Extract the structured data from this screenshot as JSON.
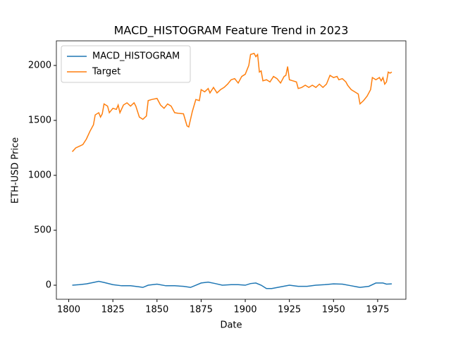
{
  "chart_data": {
    "type": "line",
    "title": "MACD_HISTOGRAM Feature Trend in 2023",
    "xlabel": "Date",
    "ylabel": "ETH-USD Price",
    "xlim": [
      1793,
      1991
    ],
    "ylim": [
      -128,
      2224
    ],
    "xticks": [
      1800,
      1825,
      1850,
      1875,
      1900,
      1925,
      1950,
      1975
    ],
    "yticks": [
      0,
      500,
      1000,
      1500,
      2000
    ],
    "grid": false,
    "legend": "upper-left",
    "series": [
      {
        "name": "MACD_HISTOGRAM",
        "color": "#1f77b4",
        "x": [
          1802,
          1806,
          1810,
          1814,
          1817,
          1820,
          1825,
          1830,
          1835,
          1840,
          1842,
          1845,
          1850,
          1855,
          1860,
          1865,
          1869,
          1872,
          1875,
          1879,
          1883,
          1887,
          1892,
          1896,
          1900,
          1903,
          1906,
          1909,
          1912,
          1915,
          1920,
          1925,
          1930,
          1935,
          1940,
          1945,
          1950,
          1955,
          1960,
          1965,
          1970,
          1974,
          1978,
          1980,
          1983
        ],
        "values": [
          0,
          5,
          12,
          25,
          35,
          25,
          5,
          -5,
          -5,
          -15,
          -20,
          0,
          10,
          -5,
          -5,
          -10,
          -20,
          0,
          20,
          28,
          15,
          0,
          5,
          5,
          0,
          15,
          20,
          0,
          -30,
          -30,
          -15,
          0,
          -10,
          -10,
          0,
          5,
          12,
          10,
          -5,
          -20,
          -10,
          20,
          20,
          10,
          12
        ]
      },
      {
        "name": "Target",
        "color": "#ff7f0e",
        "x": [
          1802,
          1804,
          1806,
          1808,
          1810,
          1812,
          1814,
          1815,
          1817,
          1818,
          1819,
          1820,
          1822,
          1823,
          1825,
          1827,
          1828,
          1829,
          1831,
          1833,
          1835,
          1837,
          1838,
          1840,
          1842,
          1844,
          1845,
          1847,
          1850,
          1852,
          1854,
          1856,
          1858,
          1860,
          1862,
          1865,
          1867,
          1868,
          1870,
          1872,
          1874,
          1875,
          1877,
          1879,
          1880,
          1882,
          1884,
          1886,
          1888,
          1890,
          1892,
          1894,
          1896,
          1898,
          1900,
          1902,
          1903,
          1905,
          1906,
          1907,
          1908,
          1909,
          1910,
          1912,
          1914,
          1916,
          1918,
          1920,
          1922,
          1923,
          1924,
          1925,
          1927,
          1929,
          1930,
          1932,
          1934,
          1936,
          1938,
          1940,
          1942,
          1944,
          1946,
          1948,
          1950,
          1952,
          1953,
          1955,
          1957,
          1958,
          1960,
          1962,
          1964,
          1965,
          1967,
          1969,
          1971,
          1972,
          1974,
          1976,
          1977,
          1978,
          1979,
          1980,
          1981,
          1982,
          1983
        ],
        "values": [
          1215,
          1250,
          1265,
          1280,
          1330,
          1400,
          1460,
          1550,
          1570,
          1530,
          1560,
          1650,
          1630,
          1570,
          1610,
          1600,
          1640,
          1570,
          1640,
          1660,
          1630,
          1660,
          1630,
          1530,
          1510,
          1540,
          1680,
          1690,
          1700,
          1640,
          1610,
          1650,
          1630,
          1570,
          1565,
          1560,
          1450,
          1440,
          1580,
          1690,
          1680,
          1780,
          1760,
          1790,
          1750,
          1800,
          1750,
          1780,
          1800,
          1830,
          1870,
          1880,
          1840,
          1900,
          1920,
          2000,
          2100,
          2110,
          2080,
          2100,
          1940,
          1950,
          1860,
          1870,
          1850,
          1900,
          1880,
          1840,
          1900,
          1910,
          1990,
          1870,
          1860,
          1850,
          1790,
          1800,
          1820,
          1800,
          1820,
          1800,
          1830,
          1800,
          1830,
          1910,
          1890,
          1900,
          1870,
          1880,
          1850,
          1820,
          1780,
          1760,
          1740,
          1650,
          1680,
          1720,
          1780,
          1890,
          1870,
          1890,
          1860,
          1890,
          1830,
          1850,
          1940,
          1930,
          1940
        ]
      }
    ]
  }
}
